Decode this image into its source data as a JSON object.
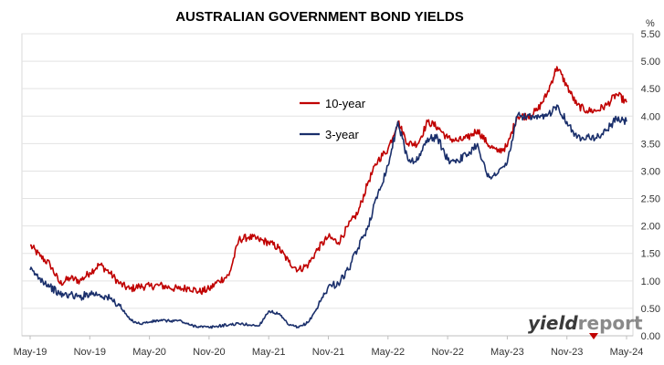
{
  "chart_data": {
    "type": "line",
    "title": "AUSTRALIAN GOVERNMENT BOND YIELDS",
    "unit": "%",
    "xlabel": "",
    "ylabel": "",
    "ylim": [
      0,
      5.5
    ],
    "yticks": [
      "0.00",
      "0.50",
      "1.00",
      "1.50",
      "2.00",
      "2.50",
      "3.00",
      "3.50",
      "4.00",
      "4.50",
      "5.00",
      "5.50"
    ],
    "xticks": [
      "May-19",
      "Nov-19",
      "May-20",
      "Nov-20",
      "May-21",
      "Nov-21",
      "May-22",
      "Nov-22",
      "May-23",
      "Nov-23",
      "May-24"
    ],
    "grid": "horizontal",
    "legend_position": "center-left",
    "series": [
      {
        "name": "10-year",
        "color": "#c00000",
        "x": [
          "May-19",
          "Jun-19",
          "Jul-19",
          "Aug-19",
          "Sep-19",
          "Oct-19",
          "Nov-19",
          "Dec-19",
          "Jan-20",
          "Feb-20",
          "Mar-20",
          "Apr-20",
          "May-20",
          "Jun-20",
          "Jul-20",
          "Aug-20",
          "Sep-20",
          "Oct-20",
          "Nov-20",
          "Dec-20",
          "Jan-21",
          "Feb-21",
          "Mar-21",
          "Apr-21",
          "May-21",
          "Jun-21",
          "Jul-21",
          "Aug-21",
          "Sep-21",
          "Oct-21",
          "Nov-21",
          "Dec-21",
          "Jan-22",
          "Feb-22",
          "Mar-22",
          "Apr-22",
          "May-22",
          "Jun-22",
          "Jul-22",
          "Aug-22",
          "Sep-22",
          "Oct-22",
          "Nov-22",
          "Dec-22",
          "Jan-23",
          "Feb-23",
          "Mar-23",
          "Apr-23",
          "May-23",
          "Jun-23",
          "Jul-23",
          "Aug-23",
          "Sep-23",
          "Oct-23",
          "Nov-23",
          "Dec-23",
          "Jan-24",
          "Feb-24",
          "Mar-24",
          "Apr-24",
          "May-24"
        ],
        "values": [
          1.65,
          1.45,
          1.3,
          0.95,
          1.05,
          1.0,
          1.15,
          1.3,
          1.15,
          0.95,
          0.85,
          0.9,
          0.9,
          0.92,
          0.88,
          0.85,
          0.88,
          0.8,
          0.85,
          1.0,
          1.1,
          1.75,
          1.8,
          1.75,
          1.7,
          1.6,
          1.35,
          1.2,
          1.3,
          1.6,
          1.8,
          1.7,
          2.0,
          2.25,
          2.8,
          3.2,
          3.4,
          3.9,
          3.5,
          3.5,
          3.9,
          3.8,
          3.6,
          3.55,
          3.6,
          3.75,
          3.5,
          3.35,
          3.45,
          4.0,
          4.0,
          4.1,
          4.4,
          4.9,
          4.55,
          4.2,
          4.1,
          4.1,
          4.2,
          4.4,
          4.25
        ]
      },
      {
        "name": "3-year",
        "color": "#1a2f6b",
        "x": [
          "May-19",
          "Jun-19",
          "Jul-19",
          "Aug-19",
          "Sep-19",
          "Oct-19",
          "Nov-19",
          "Dec-19",
          "Jan-20",
          "Feb-20",
          "Mar-20",
          "Apr-20",
          "May-20",
          "Jun-20",
          "Jul-20",
          "Aug-20",
          "Sep-20",
          "Oct-20",
          "Nov-20",
          "Dec-20",
          "Jan-21",
          "Feb-21",
          "Mar-21",
          "Apr-21",
          "May-21",
          "Jun-21",
          "Jul-21",
          "Aug-21",
          "Sep-21",
          "Oct-21",
          "Nov-21",
          "Dec-21",
          "Jan-22",
          "Feb-22",
          "Mar-22",
          "Apr-22",
          "May-22",
          "Jun-22",
          "Jul-22",
          "Aug-22",
          "Sep-22",
          "Oct-22",
          "Nov-22",
          "Dec-22",
          "Jan-23",
          "Feb-23",
          "Mar-23",
          "Apr-23",
          "May-23",
          "Jun-23",
          "Jul-23",
          "Aug-23",
          "Sep-23",
          "Oct-23",
          "Nov-23",
          "Dec-23",
          "Jan-24",
          "Feb-24",
          "Mar-24",
          "Apr-24",
          "May-24"
        ],
        "values": [
          1.2,
          1.05,
          0.9,
          0.75,
          0.75,
          0.7,
          0.78,
          0.75,
          0.68,
          0.55,
          0.3,
          0.22,
          0.25,
          0.28,
          0.27,
          0.28,
          0.2,
          0.17,
          0.15,
          0.18,
          0.2,
          0.22,
          0.2,
          0.18,
          0.45,
          0.4,
          0.2,
          0.15,
          0.25,
          0.55,
          0.9,
          0.95,
          1.2,
          1.6,
          2.0,
          2.6,
          3.1,
          3.9,
          3.2,
          3.2,
          3.6,
          3.6,
          3.2,
          3.2,
          3.3,
          3.5,
          2.9,
          2.95,
          3.15,
          4.0,
          4.0,
          3.95,
          4.0,
          4.2,
          3.9,
          3.6,
          3.65,
          3.6,
          3.75,
          3.95,
          3.9
        ]
      }
    ]
  },
  "branding": {
    "logo_part1": "yield",
    "logo_part2": "report"
  }
}
